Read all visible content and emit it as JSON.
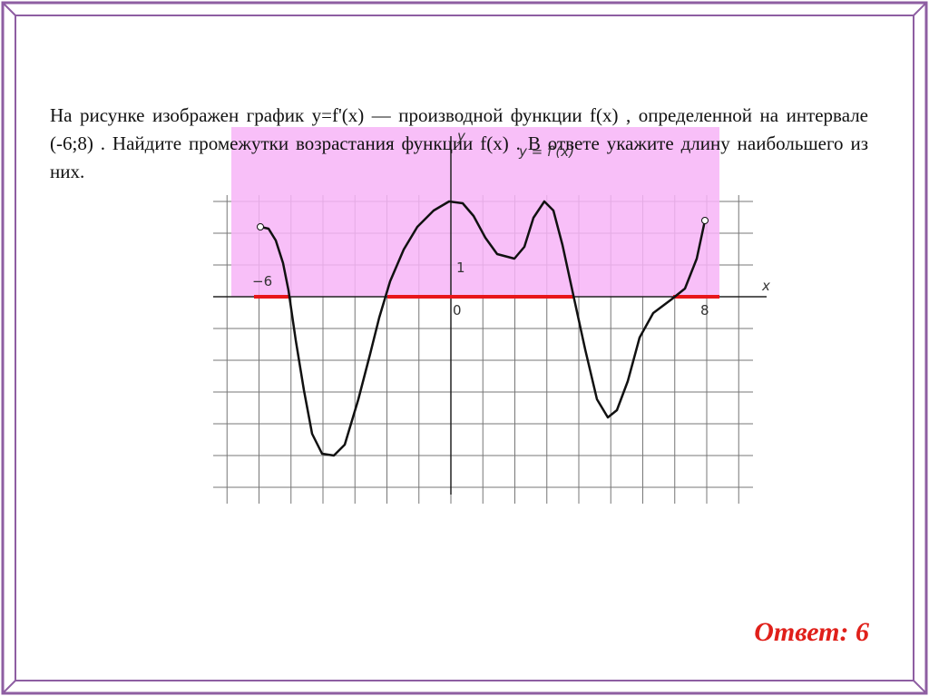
{
  "problem": "На рисунке изображен график  y=f'(x)  — производной функции  f(x) , определенной на интервале (-6;8) . Найдите промежутки возрастания функции f(x) . В ответе укажите длину наибольшего из них.",
  "answer": "Ответ: 6",
  "graph": {
    "y_label": "y",
    "x_label": "x",
    "function_label": "y = f'(x)",
    "tick_labels": [
      "−6",
      "0",
      "1",
      "8"
    ]
  }
}
